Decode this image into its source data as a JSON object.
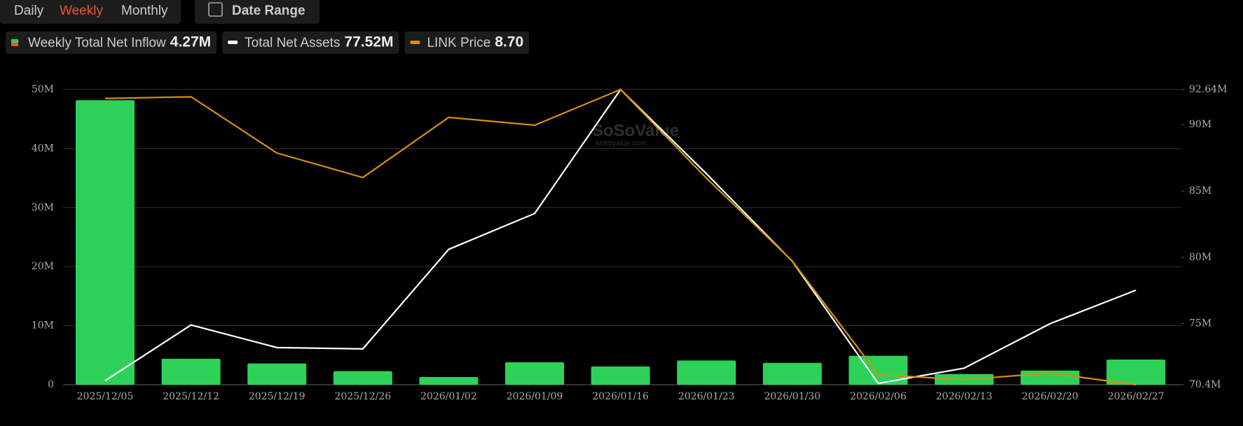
{
  "tabs": [
    "Daily",
    "Weekly",
    "Monthly"
  ],
  "active_tab": "Weekly",
  "date_range": "Date Range",
  "legend_values": [
    "4.27M",
    "77.52M",
    "8.70"
  ],
  "watermark": {
    "brand": "SoSoValue",
    "site": "sosovalue.com"
  },
  "chart_data": {
    "type": "bar_line",
    "categories": [
      "2025/12/05",
      "2025/12/12",
      "2025/12/19",
      "2025/12/26",
      "2026/01/02",
      "2026/01/09",
      "2026/01/16",
      "2026/01/23",
      "2026/01/30",
      "2026/02/06",
      "2026/02/13",
      "2026/02/20",
      "2026/02/27"
    ],
    "series": [
      {
        "name": "Weekly Total Net Inflow",
        "color": "#2ed158",
        "kind": "bar",
        "values": [
          48200000,
          4400000,
          3600000,
          2300000,
          1300000,
          3800000,
          3100000,
          4100000,
          3700000,
          4900000,
          1800000,
          2400000,
          4270000
        ]
      },
      {
        "name": "Total Net Assets",
        "color": "#ffffff",
        "kind": "line",
        "axis": "y2",
        "values": [
          70700000,
          74900000,
          73200000,
          73100000,
          80600000,
          83300000,
          92640000,
          86300000,
          79700000,
          70500000,
          71650000,
          75000000,
          77520000
        ]
      },
      {
        "name": "LINK Price",
        "color": "#d4900f",
        "kind": "line",
        "axis": "y3",
        "values": [
          13.84,
          13.87,
          12.86,
          12.42,
          13.5,
          13.36,
          14.0,
          12.41,
          10.92,
          8.88,
          8.79,
          8.91,
          8.7
        ]
      }
    ],
    "ylim": [
      0,
      50000000
    ],
    "yticks": [
      {
        "value": 0,
        "label": "0"
      },
      {
        "value": 10000000,
        "label": "10M"
      },
      {
        "value": 20000000,
        "label": "20M"
      },
      {
        "value": 30000000,
        "label": "30M"
      },
      {
        "value": 40000000,
        "label": "40M"
      },
      {
        "value": 50000000,
        "label": "50M"
      }
    ],
    "y2lim": [
      70400000,
      92640000
    ],
    "y2ticks": [
      {
        "value": 70400000,
        "label": "70.4M"
      },
      {
        "value": 75000000,
        "label": "75M"
      },
      {
        "value": 80000000,
        "label": "80M"
      },
      {
        "value": 85000000,
        "label": "85M"
      },
      {
        "value": 90000000,
        "label": "90M"
      },
      {
        "value": 92640000,
        "label": "92.64M"
      }
    ],
    "y3lim": [
      8.7,
      14.0
    ],
    "grid": true
  }
}
